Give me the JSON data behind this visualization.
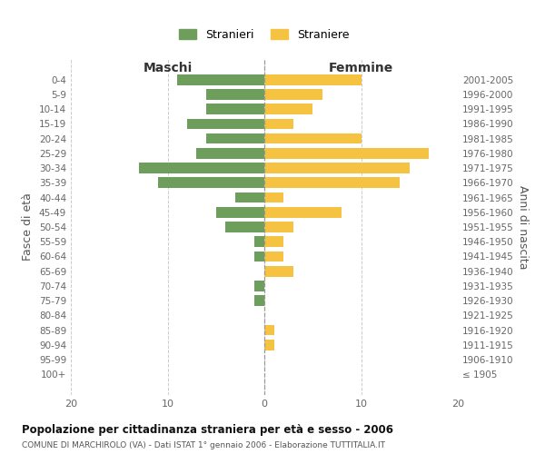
{
  "age_groups": [
    "0-4",
    "5-9",
    "10-14",
    "15-19",
    "20-24",
    "25-29",
    "30-34",
    "35-39",
    "40-44",
    "45-49",
    "50-54",
    "55-59",
    "60-64",
    "65-69",
    "70-74",
    "75-79",
    "80-84",
    "85-89",
    "90-94",
    "95-99",
    "100+"
  ],
  "birth_years": [
    "2001-2005",
    "1996-2000",
    "1991-1995",
    "1986-1990",
    "1981-1985",
    "1976-1980",
    "1971-1975",
    "1966-1970",
    "1961-1965",
    "1956-1960",
    "1951-1955",
    "1946-1950",
    "1941-1945",
    "1936-1940",
    "1931-1935",
    "1926-1930",
    "1921-1925",
    "1916-1920",
    "1911-1915",
    "1906-1910",
    "≤ 1905"
  ],
  "maschi": [
    9,
    6,
    6,
    8,
    6,
    7,
    13,
    11,
    3,
    5,
    4,
    1,
    1,
    0,
    1,
    1,
    0,
    0,
    0,
    0,
    0
  ],
  "femmine": [
    10,
    6,
    5,
    3,
    10,
    17,
    15,
    14,
    2,
    8,
    3,
    2,
    2,
    3,
    0,
    0,
    0,
    1,
    1,
    0,
    0
  ],
  "color_maschi": "#6d9e5b",
  "color_femmine": "#f5c242",
  "title": "Popolazione per cittadinanza straniera per età e sesso - 2006",
  "subtitle": "COMUNE DI MARCHIROLO (VA) - Dati ISTAT 1° gennaio 2006 - Elaborazione TUTTITALIA.IT",
  "ylabel_left": "Fasce di età",
  "ylabel_right": "Anni di nascita",
  "xlabel_maschi": "Maschi",
  "xlabel_femmine": "Femmine",
  "legend_maschi": "Stranieri",
  "legend_femmine": "Straniere",
  "xlim": [
    -20,
    20
  ],
  "xticks": [
    -20,
    -10,
    0,
    10,
    20
  ],
  "xticklabels": [
    "20",
    "10",
    "0",
    "10",
    "20"
  ],
  "background_color": "#ffffff",
  "grid_color": "#cccccc"
}
